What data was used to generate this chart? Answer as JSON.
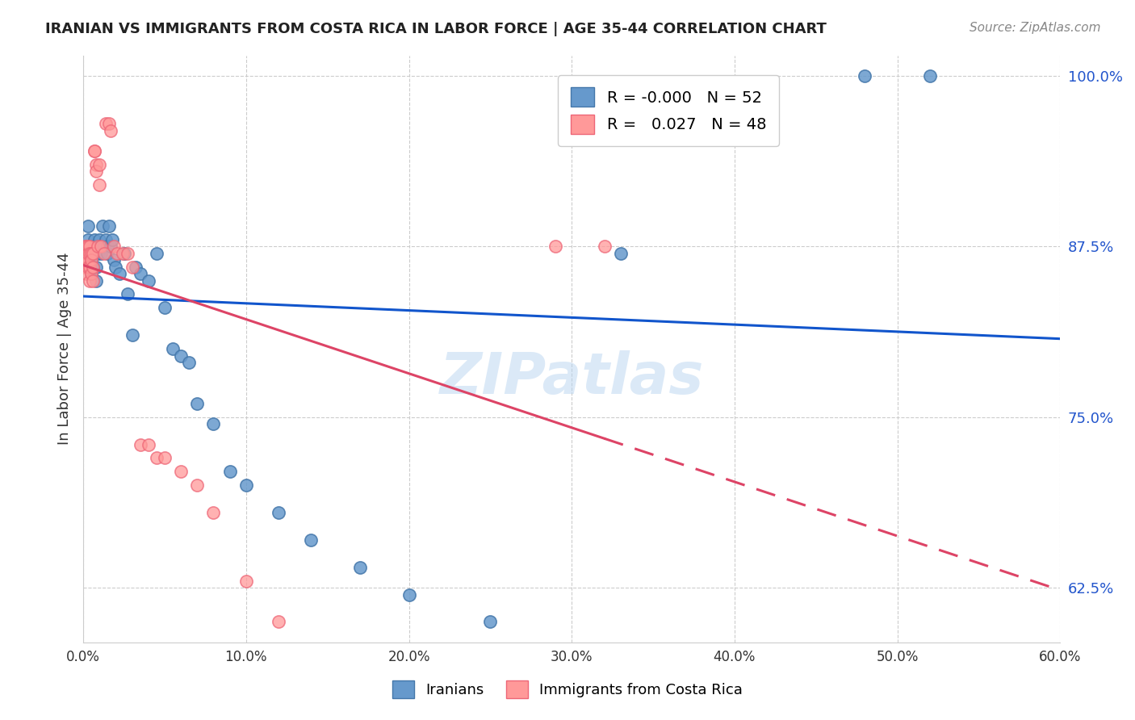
{
  "title": "IRANIAN VS IMMIGRANTS FROM COSTA RICA IN LABOR FORCE | AGE 35-44 CORRELATION CHART",
  "source": "Source: ZipAtlas.com",
  "xlabel": "",
  "ylabel": "In Labor Force | Age 35-44",
  "xlim": [
    0.0,
    0.6
  ],
  "ylim": [
    0.585,
    1.015
  ],
  "yticks": [
    0.625,
    0.75,
    0.875,
    1.0
  ],
  "ytick_labels": [
    "62.5%",
    "75.0%",
    "87.5%",
    "100.0%"
  ],
  "xticks": [
    0.0,
    0.1,
    0.2,
    0.3,
    0.4,
    0.5,
    0.6
  ],
  "xtick_labels": [
    "0.0%",
    "10.0%",
    "20.0%",
    "30.0%",
    "40.0%",
    "50.0%",
    "60.0%"
  ],
  "blue_color": "#6699cc",
  "pink_color": "#ff9999",
  "blue_edge": "#4477aa",
  "pink_edge": "#ee6677",
  "trend_blue": "#1155cc",
  "trend_pink": "#dd4466",
  "legend_R_blue": "-0.000",
  "legend_N_blue": "52",
  "legend_R_pink": "0.027",
  "legend_N_pink": "48",
  "blue_x": [
    0.002,
    0.003,
    0.003,
    0.004,
    0.004,
    0.005,
    0.005,
    0.005,
    0.006,
    0.006,
    0.007,
    0.007,
    0.008,
    0.008,
    0.009,
    0.01,
    0.01,
    0.011,
    0.012,
    0.013,
    0.014,
    0.015,
    0.015,
    0.016,
    0.017,
    0.018,
    0.019,
    0.02,
    0.022,
    0.025,
    0.027,
    0.03,
    0.032,
    0.035,
    0.04,
    0.045,
    0.05,
    0.055,
    0.06,
    0.065,
    0.07,
    0.08,
    0.09,
    0.1,
    0.12,
    0.14,
    0.17,
    0.2,
    0.25,
    0.33,
    0.48,
    0.52
  ],
  "blue_y": [
    0.875,
    0.88,
    0.89,
    0.87,
    0.86,
    0.875,
    0.865,
    0.855,
    0.87,
    0.86,
    0.88,
    0.875,
    0.86,
    0.85,
    0.87,
    0.88,
    0.875,
    0.87,
    0.89,
    0.875,
    0.88,
    0.875,
    0.87,
    0.89,
    0.875,
    0.88,
    0.865,
    0.86,
    0.855,
    0.87,
    0.84,
    0.81,
    0.86,
    0.855,
    0.85,
    0.87,
    0.83,
    0.8,
    0.795,
    0.79,
    0.76,
    0.745,
    0.71,
    0.7,
    0.68,
    0.66,
    0.64,
    0.62,
    0.6,
    0.87,
    1.0,
    1.0
  ],
  "pink_x": [
    0.001,
    0.001,
    0.001,
    0.002,
    0.002,
    0.002,
    0.002,
    0.003,
    0.003,
    0.003,
    0.004,
    0.004,
    0.004,
    0.004,
    0.005,
    0.005,
    0.005,
    0.006,
    0.006,
    0.006,
    0.007,
    0.007,
    0.008,
    0.008,
    0.009,
    0.01,
    0.01,
    0.011,
    0.013,
    0.014,
    0.016,
    0.017,
    0.019,
    0.021,
    0.024,
    0.027,
    0.03,
    0.035,
    0.04,
    0.045,
    0.05,
    0.06,
    0.07,
    0.08,
    0.1,
    0.12,
    0.29,
    0.32
  ],
  "pink_y": [
    0.875,
    0.87,
    0.86,
    0.875,
    0.87,
    0.865,
    0.855,
    0.875,
    0.87,
    0.86,
    0.875,
    0.87,
    0.86,
    0.85,
    0.87,
    0.865,
    0.855,
    0.87,
    0.86,
    0.85,
    0.945,
    0.945,
    0.935,
    0.93,
    0.875,
    0.935,
    0.92,
    0.875,
    0.87,
    0.965,
    0.965,
    0.96,
    0.875,
    0.87,
    0.87,
    0.87,
    0.86,
    0.73,
    0.73,
    0.72,
    0.72,
    0.71,
    0.7,
    0.68,
    0.63,
    0.6,
    0.875,
    0.875
  ],
  "watermark": "ZIPatlas",
  "background_color": "#ffffff",
  "grid_color": "#cccccc"
}
